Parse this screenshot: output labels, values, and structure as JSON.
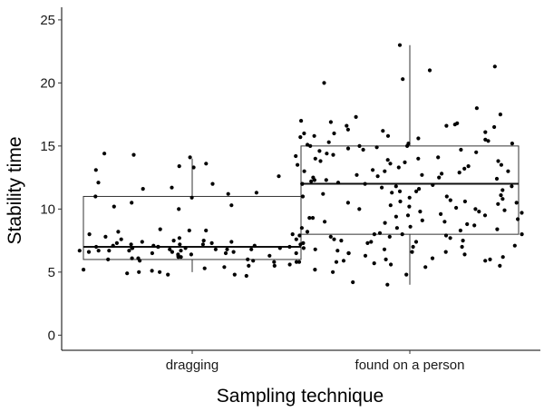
{
  "chart_data": {
    "type": "box",
    "title": "",
    "xlabel": "Sampling technique",
    "ylabel": "Stability time",
    "ylim": [
      -1.2,
      26
    ],
    "yticks": [
      0,
      5,
      10,
      15,
      20,
      25
    ],
    "grid": false,
    "categories": [
      "dragging",
      "found on a person"
    ],
    "boxes": [
      {
        "name": "dragging",
        "whisker_low": 5,
        "q1": 6,
        "median": 7,
        "q3": 11,
        "whisker_high": 14
      },
      {
        "name": "found on a person",
        "whisker_low": 4,
        "q1": 8,
        "median": 12,
        "q3": 15,
        "whisker_high": 23
      }
    ],
    "points": [
      {
        "category": "dragging",
        "values": [
          14.1,
          13.6,
          14.4,
          14.3,
          13.4,
          13.3,
          13.1,
          12.6,
          12.0,
          11.7,
          11.6,
          11.3,
          11.2,
          11.0,
          10.9,
          10.5,
          10.3,
          10.2,
          8.3,
          8.3,
          8.2,
          8.0,
          8.0,
          7.9,
          7.8,
          7.7,
          7.6,
          7.6,
          7.5,
          7.5,
          7.4,
          7.4,
          7.3,
          7.3,
          7.2,
          7.2,
          7.2,
          7.1,
          7.1,
          7.1,
          7.0,
          7.0,
          7.0,
          7.0,
          6.9,
          6.9,
          6.9,
          6.9,
          6.8,
          6.8,
          6.8,
          6.8,
          6.7,
          6.7,
          6.7,
          6.7,
          6.6,
          6.6,
          6.6,
          6.5,
          6.5,
          6.5,
          6.4,
          6.4,
          6.3,
          6.3,
          6.2,
          6.2,
          6.1,
          6.1,
          6.0,
          6.0,
          5.9,
          5.9,
          5.8,
          5.8,
          5.6,
          5.5,
          5.5,
          5.4,
          5.3,
          5.2,
          5.1,
          5.0,
          4.9,
          4.8,
          4.8,
          4.7,
          5.0,
          5.8,
          6.7,
          8.4,
          7.3,
          10.0,
          12.1,
          13.0
        ]
      },
      {
        "category": "found on a person",
        "values": [
          23.0,
          21.3,
          21.0,
          20.3,
          20.0,
          18.0,
          17.5,
          17.3,
          17.0,
          16.9,
          16.8,
          16.7,
          16.6,
          16.5,
          16.3,
          16.1,
          16.0,
          16.0,
          15.8,
          15.7,
          15.6,
          15.5,
          15.4,
          15.3,
          15.2,
          15.1,
          15.0,
          15.0,
          15.0,
          14.9,
          14.8,
          14.7,
          14.5,
          14.4,
          14.3,
          14.2,
          14.1,
          14.0,
          13.9,
          13.8,
          13.7,
          13.6,
          13.5,
          13.4,
          13.3,
          13.2,
          13.1,
          13.0,
          12.9,
          12.8,
          12.7,
          12.6,
          12.5,
          12.4,
          12.3,
          12.2,
          12.1,
          12.0,
          12.0,
          11.9,
          11.8,
          11.7,
          11.6,
          11.5,
          11.4,
          11.3,
          11.2,
          11.1,
          11.0,
          10.9,
          10.8,
          10.7,
          10.6,
          10.5,
          10.4,
          10.3,
          10.2,
          10.1,
          10.0,
          9.9,
          9.8,
          9.7,
          9.6,
          9.5,
          9.4,
          9.3,
          9.2,
          9.1,
          9.0,
          8.9,
          8.8,
          8.7,
          8.6,
          8.5,
          8.4,
          8.3,
          8.2,
          8.1,
          8.0,
          8.0,
          7.9,
          7.8,
          7.7,
          7.6,
          7.5,
          7.4,
          7.3,
          7.2,
          7.1,
          7.0,
          6.9,
          6.8,
          6.7,
          6.6,
          6.5,
          6.4,
          6.3,
          6.2,
          6.1,
          6.0,
          5.9,
          5.8,
          5.7,
          5.6,
          5.5,
          5.4,
          5.2,
          5.0,
          4.8,
          4.2,
          4.0,
          6.6,
          7.4,
          8.5,
          9.3,
          10.6,
          11.4,
          12.7,
          13.5,
          14.6,
          15.8,
          16.6,
          13.0,
          11.0,
          9.0,
          7.0,
          6.0,
          12.0,
          14.0,
          10.0,
          8.0,
          6.5,
          7.5,
          9.5,
          10.5,
          12.5,
          13.8,
          15.2,
          16.2,
          11.8,
          9.8,
          7.8,
          6.8,
          5.9,
          12.3,
          14.7
        ]
      }
    ]
  }
}
